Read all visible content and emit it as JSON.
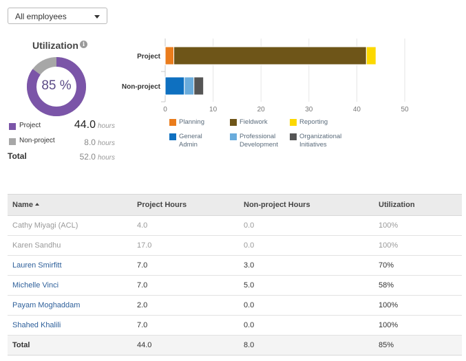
{
  "filter": {
    "selected": "All employees"
  },
  "utilization": {
    "title": "Utilization",
    "info_icon": "info-icon",
    "percent_label": "85 %",
    "percent_value": 85,
    "project_color": "#7b55a8",
    "nonproject_color": "#a7a7a7",
    "legend": [
      {
        "label": "Project",
        "value": "44.0",
        "unit": "hours",
        "color": "#7b55a8"
      },
      {
        "label": "Non-project",
        "value": "8.0",
        "unit": "hours",
        "color": "#a7a7a7"
      },
      {
        "label": "Total",
        "value": "52.0",
        "unit": "hours"
      }
    ]
  },
  "chart_data": {
    "type": "bar",
    "orientation": "horizontal",
    "stacked": true,
    "categories": [
      "Project",
      "Non-project"
    ],
    "xlim": [
      0,
      50
    ],
    "xticks": [
      "0",
      "10",
      "20",
      "30",
      "40",
      "50"
    ],
    "grid": true,
    "series": [
      {
        "name": "Planning",
        "color": "#ea7c1c",
        "values": [
          1.8,
          0
        ]
      },
      {
        "name": "Fieldwork",
        "color": "#6e5518",
        "values": [
          40.2,
          0
        ]
      },
      {
        "name": "Reporting",
        "color": "#fcd800",
        "values": [
          2.0,
          0
        ]
      },
      {
        "name": "General Admin",
        "color": "#0e70c0",
        "values": [
          0,
          4.0
        ]
      },
      {
        "name": "Professional Development",
        "color": "#6aacdc",
        "values": [
          0,
          2.0
        ]
      },
      {
        "name": "Organizational Initiatives",
        "color": "#555555",
        "values": [
          0,
          2.0
        ]
      }
    ]
  },
  "bar_legend": [
    {
      "lines": [
        "Planning"
      ],
      "color": "#ea7c1c"
    },
    {
      "lines": [
        "Fieldwork"
      ],
      "color": "#6e5518"
    },
    {
      "lines": [
        "Reporting"
      ],
      "color": "#fcd800"
    },
    {
      "lines": [
        "General Admin"
      ],
      "color": "#0e70c0"
    },
    {
      "lines": [
        "Professional",
        "Development"
      ],
      "color": "#6aacdc"
    },
    {
      "lines": [
        "Organizational",
        "Initiatives"
      ],
      "color": "#555555"
    }
  ],
  "table": {
    "columns": [
      "Name",
      "Project Hours",
      "Non-project Hours",
      "Utilization"
    ],
    "rows": [
      {
        "name": "Cathy Miyagi (ACL)",
        "project": "4.0",
        "nonproject": "0.0",
        "util": "100%",
        "active": false
      },
      {
        "name": "Karen Sandhu",
        "project": "17.0",
        "nonproject": "0.0",
        "util": "100%",
        "active": false
      },
      {
        "name": "Lauren Smirfitt",
        "project": "7.0",
        "nonproject": "3.0",
        "util": "70%",
        "active": true
      },
      {
        "name": "Michelle Vinci",
        "project": "7.0",
        "nonproject": "5.0",
        "util": "58%",
        "active": true
      },
      {
        "name": "Payam Moghaddam",
        "project": "2.0",
        "nonproject": "0.0",
        "util": "100%",
        "active": true
      },
      {
        "name": "Shahed Khalili",
        "project": "7.0",
        "nonproject": "0.0",
        "util": "100%",
        "active": true
      }
    ],
    "total": {
      "name": "Total",
      "project": "44.0",
      "nonproject": "8.0",
      "util": "85%"
    }
  }
}
